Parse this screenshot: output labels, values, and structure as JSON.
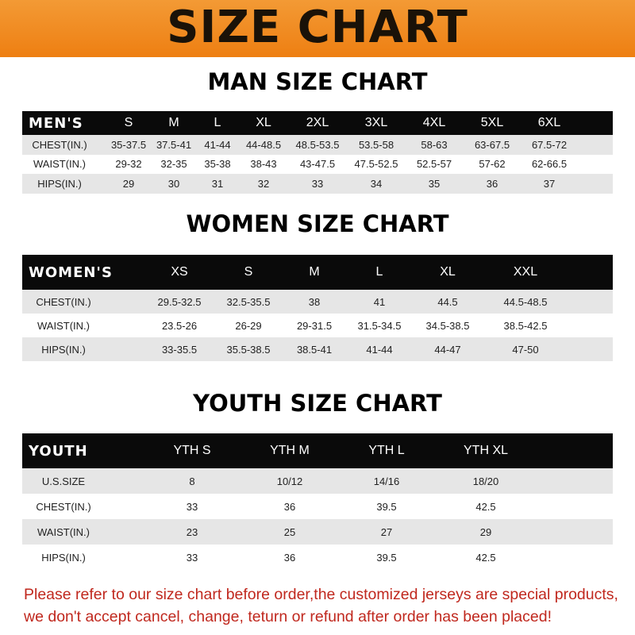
{
  "title": "SIZE CHART",
  "colors": {
    "banner": "#f08a1e",
    "header_row": "#0a0a0a",
    "stripe": "#e6e6e6",
    "notice": "#c0281e"
  },
  "men": {
    "title": "MAN SIZE CHART",
    "header": [
      "MEN'S",
      "S",
      "M",
      "L",
      "XL",
      "2XL",
      "3XL",
      "4XL",
      "5XL",
      "6XL"
    ],
    "rows": [
      [
        "CHEST(IN.)",
        "35-37.5",
        "37.5-41",
        "41-44",
        "44-48.5",
        "48.5-53.5",
        "53.5-58",
        "58-63",
        "63-67.5",
        "67.5-72"
      ],
      [
        "WAIST(IN.)",
        "29-32",
        "32-35",
        "35-38",
        "38-43",
        "43-47.5",
        "47.5-52.5",
        "52.5-57",
        "57-62",
        "62-66.5"
      ],
      [
        "HIPS(IN.)",
        "29",
        "30",
        "31",
        "32",
        "33",
        "34",
        "35",
        "36",
        "37"
      ]
    ]
  },
  "women": {
    "title": "WOMEN SIZE CHART",
    "header": [
      "WOMEN'S",
      "XS",
      "S",
      "M",
      "L",
      "XL",
      "XXL"
    ],
    "rows": [
      [
        "CHEST(IN.)",
        "29.5-32.5",
        "32.5-35.5",
        "38",
        "41",
        "44.5",
        "44.5-48.5"
      ],
      [
        "WAIST(IN.)",
        "23.5-26",
        "26-29",
        "29-31.5",
        "31.5-34.5",
        "34.5-38.5",
        "38.5-42.5"
      ],
      [
        "HIPS(IN.)",
        "33-35.5",
        "35.5-38.5",
        "38.5-41",
        "41-44",
        "44-47",
        "47-50"
      ]
    ]
  },
  "youth": {
    "title": "YOUTH SIZE CHART",
    "header": [
      "YOUTH",
      "YTH S",
      "YTH M",
      "YTH L",
      "YTH XL"
    ],
    "rows": [
      [
        "U.S.SIZE",
        "8",
        "10/12",
        "14/16",
        "18/20"
      ],
      [
        "CHEST(IN.)",
        "33",
        "36",
        "39.5",
        "42.5"
      ],
      [
        "WAIST(IN.)",
        "23",
        "25",
        "27",
        "29"
      ],
      [
        "HIPS(IN.)",
        "33",
        "36",
        "39.5",
        "42.5"
      ]
    ]
  },
  "notice": {
    "line1": "Please refer to our size chart before order,the customized jerseys are special products,",
    "line2": "we don't accept cancel, change, teturn or refund after order has been placed!"
  }
}
